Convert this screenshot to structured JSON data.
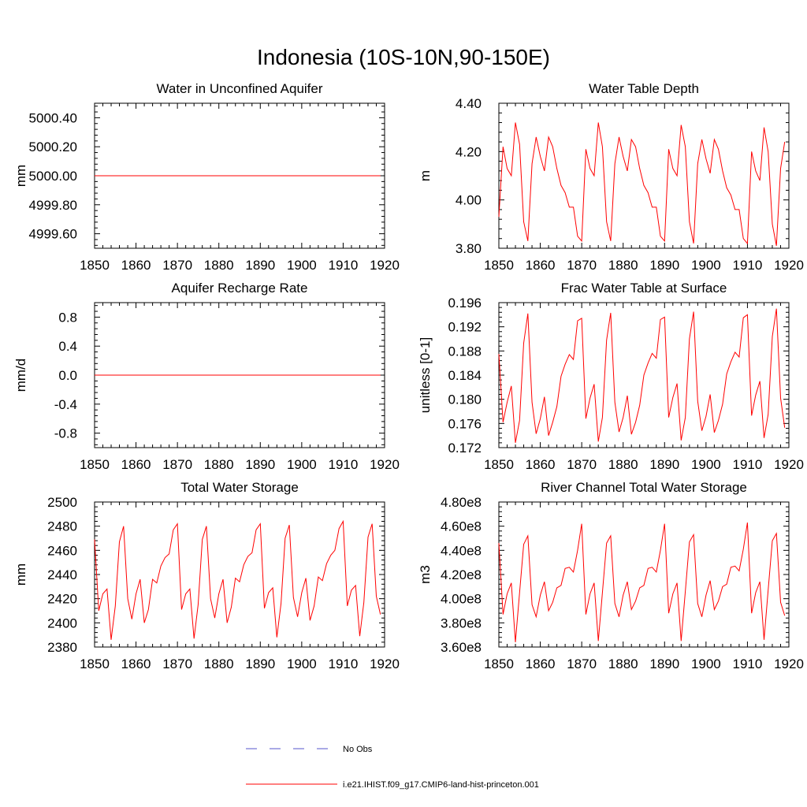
{
  "figure": {
    "title": "Indonesia (10S-10N,90-150E)"
  },
  "legend": {
    "items": [
      {
        "label": "No Obs",
        "color": "#5555cc",
        "dash": "dashed"
      },
      {
        "label": "i.e21.IHIST.f09_g17.CMIP6-land-hist-princeton.001",
        "color": "#ff0000",
        "dash": "solid"
      }
    ]
  },
  "chart_data": [
    {
      "type": "line",
      "title": "Water in Unconfined Aquifer",
      "ylabel": "mm",
      "xlim": [
        1850,
        1920
      ],
      "ylim": [
        4999.5,
        5000.5
      ],
      "x_ticks": [
        "1850",
        "1860",
        "1870",
        "1880",
        "1890",
        "1900",
        "1910",
        "1920"
      ],
      "y_ticks": [
        {
          "v": 4999.6,
          "label": "4999.60"
        },
        {
          "v": 4999.8,
          "label": "4999.80"
        },
        {
          "v": 5000.0,
          "label": "5000.00"
        },
        {
          "v": 5000.2,
          "label": "5000.20"
        },
        {
          "v": 5000.4,
          "label": "5000.40"
        }
      ],
      "series": [
        {
          "x": [
            1850,
            1919
          ],
          "y": [
            5000.0,
            5000.0
          ],
          "color": "#ff0000"
        }
      ]
    },
    {
      "type": "line",
      "title": "Water Table Depth",
      "ylabel": "m",
      "xlim": [
        1850,
        1920
      ],
      "ylim": [
        3.8,
        4.4
      ],
      "x_ticks": [
        "1850",
        "1860",
        "1870",
        "1880",
        "1890",
        "1900",
        "1910",
        "1920"
      ],
      "y_ticks": [
        {
          "v": 3.8,
          "label": "3.80"
        },
        {
          "v": 4.0,
          "label": "4.00"
        },
        {
          "v": 4.2,
          "label": "4.20"
        },
        {
          "v": 4.4,
          "label": "4.40"
        }
      ],
      "series": [
        {
          "x0": 1850,
          "dx": 1,
          "color": "#ff0000",
          "y": [
            3.93,
            4.22,
            4.13,
            4.1,
            4.32,
            4.23,
            3.91,
            3.83,
            4.15,
            4.26,
            4.18,
            4.12,
            4.26,
            4.22,
            4.13,
            4.06,
            4.03,
            3.97,
            3.97,
            3.85,
            3.83,
            4.21,
            4.13,
            4.1,
            4.32,
            4.22,
            3.91,
            3.83,
            4.15,
            4.26,
            4.18,
            4.12,
            4.25,
            4.22,
            4.13,
            4.06,
            4.03,
            3.97,
            3.97,
            3.85,
            3.83,
            4.21,
            4.13,
            4.1,
            4.31,
            4.22,
            3.91,
            3.82,
            4.15,
            4.25,
            4.17,
            4.11,
            4.25,
            4.21,
            4.12,
            4.05,
            4.02,
            3.96,
            3.96,
            3.84,
            3.82,
            4.2,
            4.12,
            4.08,
            4.3,
            4.2,
            3.9,
            3.81,
            4.13,
            4.24
          ]
        }
      ]
    },
    {
      "type": "line",
      "title": "Aquifer Recharge Rate",
      "ylabel": "mm/d",
      "xlim": [
        1850,
        1920
      ],
      "ylim": [
        -1.0,
        1.0
      ],
      "x_ticks": [
        "1850",
        "1860",
        "1870",
        "1880",
        "1890",
        "1900",
        "1910",
        "1920"
      ],
      "y_ticks": [
        {
          "v": -0.8,
          "label": "-0.8"
        },
        {
          "v": -0.4,
          "label": "-0.4"
        },
        {
          "v": 0.0,
          "label": "0.0"
        },
        {
          "v": 0.4,
          "label": "0.4"
        },
        {
          "v": 0.8,
          "label": "0.8"
        }
      ],
      "series": [
        {
          "x": [
            1850,
            1919
          ],
          "y": [
            0.0,
            0.0
          ],
          "color": "#ff0000"
        }
      ]
    },
    {
      "type": "line",
      "title": "Frac Water Table at Surface",
      "ylabel": "unitless [0-1]",
      "xlim": [
        1850,
        1920
      ],
      "ylim": [
        0.172,
        0.196
      ],
      "x_ticks": [
        "1850",
        "1860",
        "1870",
        "1880",
        "1890",
        "1900",
        "1910",
        "1920"
      ],
      "y_ticks": [
        {
          "v": 0.172,
          "label": "0.172"
        },
        {
          "v": 0.176,
          "label": "0.176"
        },
        {
          "v": 0.18,
          "label": "0.180"
        },
        {
          "v": 0.184,
          "label": "0.184"
        },
        {
          "v": 0.188,
          "label": "0.188"
        },
        {
          "v": 0.192,
          "label": "0.192"
        },
        {
          "v": 0.196,
          "label": "0.196"
        }
      ],
      "series": [
        {
          "x0": 1850,
          "dx": 1,
          "color": "#ff0000",
          "y": [
            0.1875,
            0.1762,
            0.1795,
            0.1822,
            0.1728,
            0.1765,
            0.1893,
            0.1942,
            0.1795,
            0.1743,
            0.1768,
            0.1804,
            0.174,
            0.1762,
            0.1788,
            0.1838,
            0.1858,
            0.1874,
            0.1866,
            0.193,
            0.1934,
            0.1768,
            0.1802,
            0.1825,
            0.173,
            0.177,
            0.1898,
            0.1943,
            0.1795,
            0.1746,
            0.177,
            0.1806,
            0.1742,
            0.1762,
            0.179,
            0.184,
            0.186,
            0.1876,
            0.1868,
            0.1932,
            0.1936,
            0.177,
            0.1803,
            0.1826,
            0.1732,
            0.177,
            0.19,
            0.1945,
            0.1797,
            0.1748,
            0.1772,
            0.1808,
            0.1745,
            0.1765,
            0.1792,
            0.1842,
            0.1862,
            0.1878,
            0.187,
            0.1935,
            0.194,
            0.1773,
            0.1807,
            0.183,
            0.1736,
            0.1775,
            0.1904,
            0.195,
            0.1802,
            0.1753
          ]
        }
      ]
    },
    {
      "type": "line",
      "title": "Total Water Storage",
      "ylabel": "mm",
      "xlim": [
        1850,
        1920
      ],
      "ylim": [
        2380,
        2500
      ],
      "x_ticks": [
        "1850",
        "1860",
        "1870",
        "1880",
        "1890",
        "1900",
        "1910",
        "1920"
      ],
      "y_ticks": [
        {
          "v": 2380,
          "label": "2380"
        },
        {
          "v": 2400,
          "label": "2400"
        },
        {
          "v": 2420,
          "label": "2420"
        },
        {
          "v": 2440,
          "label": "2440"
        },
        {
          "v": 2460,
          "label": "2460"
        },
        {
          "v": 2480,
          "label": "2480"
        },
        {
          "v": 2500,
          "label": "2500"
        }
      ],
      "series": [
        {
          "x0": 1850,
          "dx": 1,
          "color": "#ff0000",
          "y": [
            2469,
            2410,
            2424,
            2428,
            2386,
            2414,
            2467,
            2480,
            2420,
            2403,
            2424,
            2436,
            2400,
            2411,
            2436,
            2433,
            2447,
            2454,
            2457,
            2477,
            2482,
            2411,
            2424,
            2428,
            2387,
            2415,
            2469,
            2480,
            2420,
            2404,
            2424,
            2436,
            2400,
            2413,
            2437,
            2434,
            2448,
            2455,
            2458,
            2477,
            2482,
            2412,
            2425,
            2429,
            2388,
            2416,
            2470,
            2481,
            2421,
            2405,
            2425,
            2437,
            2402,
            2414,
            2438,
            2435,
            2449,
            2456,
            2460,
            2478,
            2484,
            2414,
            2427,
            2431,
            2389,
            2417,
            2471,
            2482,
            2422,
            2407
          ]
        }
      ]
    },
    {
      "type": "line",
      "title": "River Channel Total Water Storage",
      "ylabel": "m3",
      "xlim": [
        1850,
        1920
      ],
      "ylim": [
        360000000,
        480000000
      ],
      "x_ticks": [
        "1850",
        "1860",
        "1870",
        "1880",
        "1890",
        "1900",
        "1910",
        "1920"
      ],
      "y_ticks": [
        {
          "v": 360000000,
          "label": "3.60e8"
        },
        {
          "v": 380000000,
          "label": "3.80e8"
        },
        {
          "v": 400000000,
          "label": "4.00e8"
        },
        {
          "v": 420000000,
          "label": "4.20e8"
        },
        {
          "v": 440000000,
          "label": "4.40e8"
        },
        {
          "v": 460000000,
          "label": "4.60e8"
        },
        {
          "v": 480000000,
          "label": "4.80e8"
        }
      ],
      "series": [
        {
          "x0": 1850,
          "dx": 1,
          "color": "#ff0000",
          "y": [
            446000000,
            387000000,
            404000000,
            413000000,
            364000000,
            405000000,
            445000000,
            452000000,
            395000000,
            385000000,
            403000000,
            414000000,
            390000000,
            397000000,
            409000000,
            411000000,
            425000000,
            426000000,
            422000000,
            440000000,
            462000000,
            387000000,
            404000000,
            413000000,
            365000000,
            405000000,
            446000000,
            452000000,
            396000000,
            385000000,
            403000000,
            414000000,
            391000000,
            398000000,
            409000000,
            411000000,
            425000000,
            426000000,
            422000000,
            440000000,
            462000000,
            388000000,
            404000000,
            413000000,
            365000000,
            406000000,
            447000000,
            453000000,
            396000000,
            385000000,
            403000000,
            415000000,
            391000000,
            398000000,
            410000000,
            412000000,
            426000000,
            427000000,
            423000000,
            441000000,
            463000000,
            388000000,
            405000000,
            414000000,
            366000000,
            407000000,
            448000000,
            454000000,
            397000000,
            386000000
          ]
        }
      ]
    }
  ]
}
